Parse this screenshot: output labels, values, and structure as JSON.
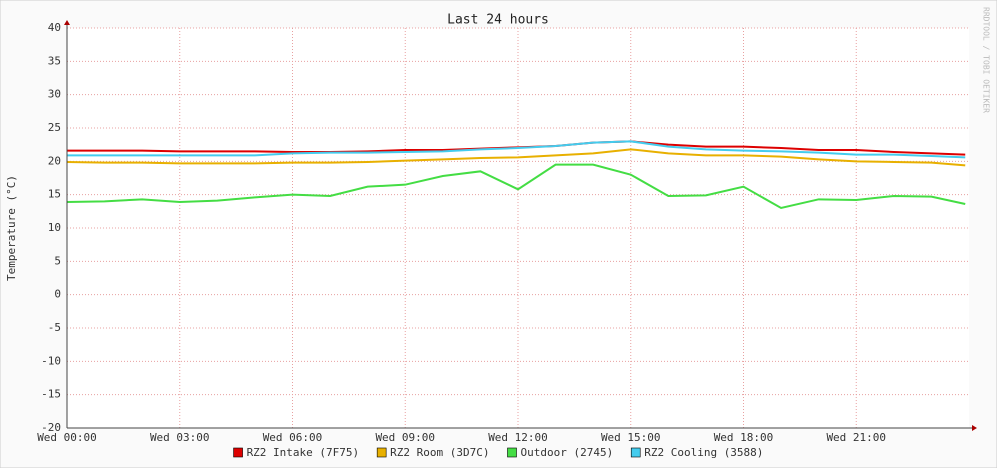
{
  "chart_data": {
    "type": "line",
    "title": "Last 24 hours",
    "y_label": "Temperature (°C)",
    "watermark": "RRDTOOL / TOBI OETIKER",
    "x": [
      0,
      1,
      2,
      3,
      4,
      5,
      6,
      7,
      8,
      9,
      10,
      11,
      12,
      13,
      14,
      15,
      16,
      17,
      18,
      19,
      20,
      21,
      22,
      23,
      23.9
    ],
    "xlim": [
      0,
      24
    ],
    "xticks": [
      {
        "value": 0,
        "label": "Wed 00:00"
      },
      {
        "value": 3,
        "label": "Wed 03:00"
      },
      {
        "value": 6,
        "label": "Wed 06:00"
      },
      {
        "value": 9,
        "label": "Wed 09:00"
      },
      {
        "value": 12,
        "label": "Wed 12:00"
      },
      {
        "value": 15,
        "label": "Wed 15:00"
      },
      {
        "value": 18,
        "label": "Wed 18:00"
      },
      {
        "value": 21,
        "label": "Wed 21:00"
      }
    ],
    "ylim": [
      -20,
      40
    ],
    "yticks": [
      -20,
      -15,
      -10,
      -5,
      0,
      5,
      10,
      15,
      20,
      25,
      30,
      35,
      40
    ],
    "grid": true,
    "series": [
      {
        "name": "RZ2 Intake (7F75)",
        "color": "#dd0000",
        "values": [
          21.6,
          21.6,
          21.6,
          21.5,
          21.5,
          21.5,
          21.4,
          21.4,
          21.5,
          21.7,
          21.7,
          21.9,
          22.1,
          22.3,
          22.8,
          23.0,
          22.5,
          22.2,
          22.2,
          22.0,
          21.7,
          21.7,
          21.4,
          21.2,
          21.0
        ]
      },
      {
        "name": "RZ2 Room (3D7C)",
        "color": "#e8b000",
        "values": [
          19.9,
          19.8,
          19.8,
          19.7,
          19.7,
          19.7,
          19.8,
          19.8,
          19.9,
          20.1,
          20.3,
          20.5,
          20.6,
          20.9,
          21.2,
          21.8,
          21.2,
          20.9,
          20.9,
          20.7,
          20.3,
          20.0,
          19.9,
          19.8,
          19.4
        ]
      },
      {
        "name": "Outdoor (2745)",
        "color": "#44dd44",
        "values": [
          13.9,
          14.0,
          14.3,
          13.9,
          14.1,
          14.6,
          15.0,
          14.8,
          16.2,
          16.5,
          17.8,
          18.5,
          15.8,
          19.5,
          19.5,
          18.0,
          14.8,
          14.9,
          16.2,
          13.0,
          14.3,
          14.2,
          14.8,
          14.7,
          13.6
        ]
      },
      {
        "name": "RZ2 Cooling (3588)",
        "color": "#44ccee",
        "values": [
          20.9,
          20.9,
          20.9,
          20.9,
          20.9,
          20.9,
          21.2,
          21.3,
          21.3,
          21.4,
          21.5,
          21.8,
          22.0,
          22.3,
          22.8,
          23.0,
          22.2,
          21.8,
          21.6,
          21.5,
          21.3,
          21.0,
          21.0,
          20.8,
          20.6
        ]
      }
    ]
  }
}
